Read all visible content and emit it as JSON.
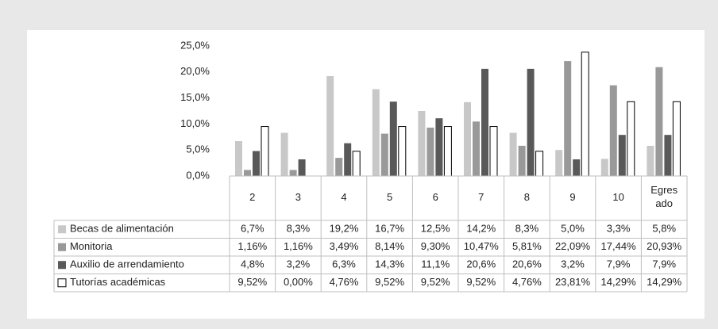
{
  "chart_data": {
    "type": "bar",
    "categories": [
      "2",
      "3",
      "4",
      "5",
      "6",
      "7",
      "8",
      "9",
      "10",
      "Egresado"
    ],
    "ylim": [
      0,
      25
    ],
    "yticks": [
      {
        "value": 0,
        "label": "0,0%"
      },
      {
        "value": 5,
        "label": "5,0%"
      },
      {
        "value": 10,
        "label": "10,0%"
      },
      {
        "value": 15,
        "label": "15,0%"
      },
      {
        "value": 20,
        "label": "20,0%"
      },
      {
        "value": 25,
        "label": "25,0%"
      }
    ],
    "grid": false,
    "series": [
      {
        "name": "Becas de alimentación",
        "color": "#c8c8c8",
        "values": [
          6.7,
          8.3,
          19.2,
          16.7,
          12.5,
          14.2,
          8.3,
          5.0,
          3.3,
          5.8
        ],
        "value_labels": [
          "6,7%",
          "8,3%",
          "19,2%",
          "16,7%",
          "12,5%",
          "14,2%",
          "8,3%",
          "5,0%",
          "3,3%",
          "5,8%"
        ]
      },
      {
        "name": "Monitoria",
        "color": "#999999",
        "values": [
          1.16,
          1.16,
          3.49,
          8.14,
          9.3,
          10.47,
          5.81,
          22.09,
          17.44,
          20.93
        ],
        "value_labels": [
          "1,16%",
          "1,16%",
          "3,49%",
          "8,14%",
          "9,30%",
          "10,47%",
          "5,81%",
          "22,09%",
          "17,44%",
          "20,93%"
        ]
      },
      {
        "name": "Auxilio de arrendamiento",
        "color": "#595959",
        "values": [
          4.8,
          3.2,
          6.3,
          14.3,
          11.1,
          20.6,
          20.6,
          3.2,
          7.9,
          7.9
        ],
        "value_labels": [
          "4,8%",
          "3,2%",
          "6,3%",
          "14,3%",
          "11,1%",
          "20,6%",
          "20,6%",
          "3,2%",
          "7,9%",
          "7,9%"
        ]
      },
      {
        "name": "Tutorías académicas",
        "color": "#ffffff",
        "values": [
          9.52,
          0.0,
          4.76,
          9.52,
          9.52,
          9.52,
          4.76,
          23.81,
          14.29,
          14.29
        ],
        "value_labels": [
          "9,52%",
          "0,00%",
          "4,76%",
          "9,52%",
          "9,52%",
          "9,52%",
          "4,76%",
          "23,81%",
          "14,29%",
          "14,29%"
        ]
      }
    ]
  }
}
